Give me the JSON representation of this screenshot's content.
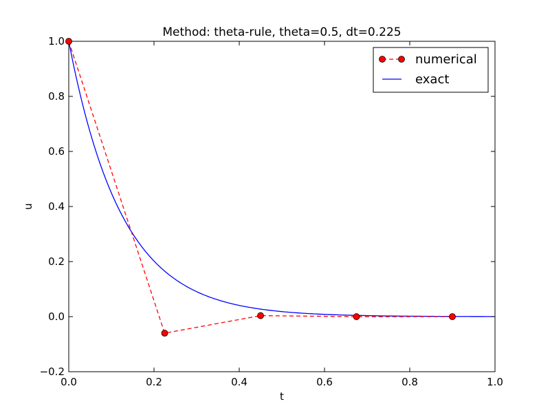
{
  "chart_data": {
    "type": "line",
    "title": "Method: theta-rule, theta=0.5, dt=0.225",
    "xlabel": "t",
    "ylabel": "u",
    "xlim": [
      0.0,
      1.0
    ],
    "ylim": [
      -0.2,
      1.0
    ],
    "xticks": [
      "0.0",
      "0.2",
      "0.4",
      "0.6",
      "0.8",
      "1.0"
    ],
    "yticks": [
      "−0.2",
      "0.0",
      "0.2",
      "0.4",
      "0.6",
      "0.8",
      "1.0"
    ],
    "xtick_values": [
      0.0,
      0.2,
      0.4,
      0.6,
      0.8,
      1.0
    ],
    "ytick_values": [
      -0.2,
      0.0,
      0.2,
      0.4,
      0.6,
      0.8,
      1.0
    ],
    "grid": false,
    "legend_position": "top-right",
    "series": [
      {
        "name": "numerical",
        "style": "dashed-with-circle-markers",
        "color": "#ff0000",
        "marker_fill": "#ff0000",
        "x": [
          0.0,
          0.225,
          0.45,
          0.675,
          0.9
        ],
        "y": [
          1.0,
          -0.06,
          0.0036,
          -0.0002,
          0.0
        ]
      },
      {
        "name": "exact",
        "style": "solid",
        "color": "#0000ff",
        "function": "exp(-a*t)",
        "a": 8,
        "x_range": [
          0.0,
          1.0
        ]
      }
    ]
  }
}
